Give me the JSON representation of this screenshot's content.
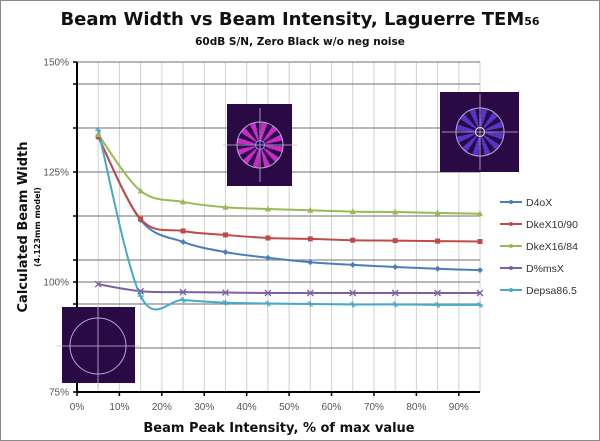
{
  "chart_data": {
    "type": "line",
    "title": "Beam Width vs Beam Intensity, Laguerre TEM",
    "title_subscript": "56",
    "subtitle": "60dB S/N, Zero Black w/o neg noise",
    "xlabel": "Beam Peak Intensity, % of max value",
    "ylabel": "Calculated Beam Width",
    "ylabel_sub": "(4.123mm model)",
    "xlim": [
      0,
      95
    ],
    "ylim": [
      75,
      150
    ],
    "x_ticks": [
      0,
      10,
      20,
      30,
      40,
      50,
      60,
      70,
      80,
      90
    ],
    "x_tick_labels": [
      "0%",
      "10%",
      "20%",
      "30%",
      "40%",
      "50%",
      "60%",
      "70%",
      "80%",
      "90%"
    ],
    "y_ticks": [
      75,
      100,
      125,
      150
    ],
    "y_tick_labels": [
      "75%",
      "100%",
      "125%",
      "150%"
    ],
    "y_gridlines": [
      150,
      145,
      135,
      125,
      115,
      105,
      100,
      95,
      85,
      75
    ],
    "x_gridline_step": 5,
    "grid": true,
    "legend_position": "right",
    "smoothed": true,
    "x": [
      5,
      15,
      25,
      35,
      45,
      55,
      65,
      75,
      85,
      95
    ],
    "series": [
      {
        "name": "D4oX",
        "color": "#4a7ebb",
        "marker": "diamond",
        "values": [
          133.0,
          114.1,
          109.1,
          106.8,
          105.5,
          104.5,
          103.9,
          103.4,
          103.0,
          102.7
        ]
      },
      {
        "name": "DkeX10/90",
        "color": "#be4b48",
        "marker": "square",
        "values": [
          133.0,
          114.3,
          111.6,
          110.7,
          110.0,
          109.8,
          109.5,
          109.4,
          109.3,
          109.2
        ]
      },
      {
        "name": "DkeX16/84",
        "color": "#98b954",
        "marker": "triangle",
        "values": [
          133.5,
          120.7,
          118.2,
          117.0,
          116.6,
          116.3,
          116.0,
          115.9,
          115.7,
          115.5
        ]
      },
      {
        "name": "D%msX",
        "color": "#7d60a0",
        "marker": "x",
        "values": [
          99.5,
          97.9,
          97.7,
          97.6,
          97.5,
          97.5,
          97.5,
          97.5,
          97.5,
          97.5
        ]
      },
      {
        "name": "Depsa86.5",
        "color": "#46aac5",
        "marker": "star",
        "values": [
          134.5,
          96.8,
          95.9,
          95.3,
          95.1,
          95.0,
          94.9,
          94.9,
          94.8,
          94.8
        ]
      }
    ],
    "inset_images": [
      {
        "name": "beam-profile-center",
        "description_icon": "beam-pattern-icon"
      },
      {
        "name": "beam-profile-right",
        "description_icon": "beam-pattern-icon"
      },
      {
        "name": "beam-profile-bottom-left",
        "description_icon": "beam-pattern-icon"
      }
    ]
  }
}
